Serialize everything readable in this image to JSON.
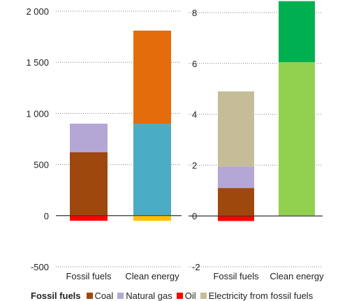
{
  "chart_data": [
    {
      "type": "bar",
      "stacked": true,
      "categories": [
        "Fossil fuels",
        "Clean energy"
      ],
      "ylim": [
        -500,
        2000
      ],
      "yticks": [
        -500,
        0,
        500,
        1000,
        1500,
        2000
      ],
      "ytick_labels": [
        "-500",
        "0",
        "500",
        "1 000",
        "1 500",
        "2 000"
      ],
      "grid": true,
      "series": [
        {
          "key": "coal",
          "color": "#9e480e",
          "values": [
            620,
            0
          ]
        },
        {
          "key": "gas",
          "color": "#b4a7d6",
          "values": [
            280,
            0
          ]
        },
        {
          "key": "oil",
          "color": "#ff0000",
          "values": [
            -50,
            0
          ]
        },
        {
          "key": "clean_a",
          "color": "#4bacc6",
          "values": [
            0,
            900
          ]
        },
        {
          "key": "clean_b",
          "color": "#e46c0a",
          "values": [
            0,
            910
          ]
        },
        {
          "key": "clean_c",
          "color": "#ffc000",
          "values": [
            0,
            -50
          ]
        }
      ]
    },
    {
      "type": "bar",
      "stacked": true,
      "categories": [
        "Fossil fuels",
        "Clean energy"
      ],
      "ylim": [
        -2,
        8.5
      ],
      "yticks": [
        -2,
        0,
        2,
        4,
        6,
        8
      ],
      "ytick_labels": [
        "-2",
        "0",
        "2",
        "4",
        "6",
        "8"
      ],
      "grid": true,
      "series": [
        {
          "key": "coal",
          "color": "#9e480e",
          "values": [
            1.1,
            0
          ]
        },
        {
          "key": "gas",
          "color": "#b4a7d6",
          "values": [
            0.85,
            0
          ]
        },
        {
          "key": "elec",
          "color": "#c4bd97",
          "values": [
            2.95,
            0
          ]
        },
        {
          "key": "oil",
          "color": "#ff0000",
          "values": [
            -0.2,
            0
          ]
        },
        {
          "key": "clean_a",
          "color": "#92d050",
          "values": [
            0,
            6.05
          ]
        },
        {
          "key": "clean_b",
          "color": "#00b050",
          "values": [
            0,
            2.4
          ]
        }
      ]
    }
  ],
  "legend": {
    "title": "Fossil fuels",
    "items": [
      {
        "label": "Coal",
        "color": "#9e480e"
      },
      {
        "label": "Natural gas",
        "color": "#b4a7d6"
      },
      {
        "label": "Oil",
        "color": "#ff0000"
      },
      {
        "label": "Electricity from fossil fuels",
        "color": "#c4bd97"
      }
    ]
  }
}
